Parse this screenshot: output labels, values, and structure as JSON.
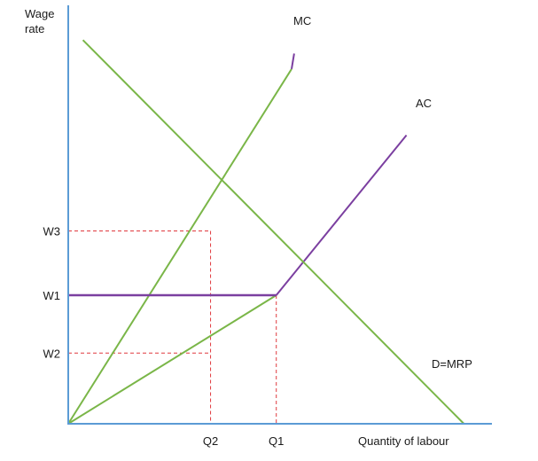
{
  "chart_data": {
    "type": "line",
    "ylabel": [
      "Wage",
      "rate"
    ],
    "xlabel": "Quantity of labour",
    "y_ticks": [
      {
        "label": "W3",
        "value": 3
      },
      {
        "label": "W1",
        "value": 2
      },
      {
        "label": "W2",
        "value": 1.1
      }
    ],
    "x_ticks": [
      {
        "label": "Q2",
        "value": 2.23
      },
      {
        "label": "Q1",
        "value": 3.26
      }
    ],
    "xlim": [
      0,
      6.3
    ],
    "ylim": [
      0,
      6
    ],
    "series": [
      {
        "name": "MC",
        "color": "#7ab648",
        "tip_color": "#7b3fa0",
        "points": [
          [
            0,
            0
          ],
          [
            3.5,
            5.52
          ],
          [
            3.54,
            5.76
          ]
        ]
      },
      {
        "name": "AC",
        "color": "#7ab648",
        "upper_color": "#7b3fa0",
        "points": [
          [
            0,
            0
          ],
          [
            3.26,
            2
          ],
          [
            5.3,
            4.49
          ]
        ]
      },
      {
        "name": "D=MRP",
        "color": "#7ab648",
        "points": [
          [
            0.23,
            5.97
          ],
          [
            6.2,
            0
          ]
        ]
      }
    ],
    "horizontal_segment": {
      "color": "#7b3fa0",
      "x": [
        0,
        3.26
      ],
      "y": 2
    },
    "guides": {
      "color": "#e0393e",
      "style": "dashed"
    },
    "axis_color": "#5b9bd5",
    "grid": false,
    "legend": "none"
  }
}
